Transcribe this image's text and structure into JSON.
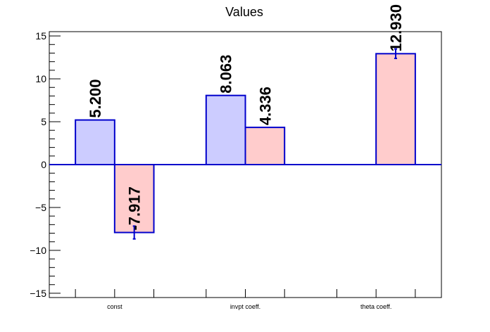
{
  "chart_data": {
    "type": "bar",
    "title": "Values",
    "xlabel": "",
    "ylabel": "",
    "ylim": [
      -15.5,
      15.5
    ],
    "yticks": [
      -15,
      -10,
      -5,
      0,
      5,
      10,
      15
    ],
    "ytick_labels": [
      "−15",
      "−10",
      "−5",
      "0",
      "5",
      "10",
      "15"
    ],
    "categories": [
      "const",
      "invpt coeff.",
      "theta coeff."
    ],
    "grid": false,
    "legend": "none",
    "bars": [
      {
        "category": "const",
        "slot": 0,
        "value": 5.2,
        "label": "5.200",
        "error": 0.0,
        "color": "#ccccff"
      },
      {
        "category": "const",
        "slot": 1,
        "value": -7.917,
        "label": "-7.917",
        "error": 0.75,
        "color": "#ffcccc"
      },
      {
        "category": "invpt coeff.",
        "slot": 0,
        "value": 8.063,
        "label": "8.063",
        "error": 0.0,
        "color": "#ccccff"
      },
      {
        "category": "invpt coeff.",
        "slot": 1,
        "value": 4.336,
        "label": "4.336",
        "error": 0.0,
        "color": "#ffcccc"
      },
      {
        "category": "theta coeff.",
        "slot": 1,
        "value": 12.93,
        "label": "12.930",
        "error": 0.55,
        "color": "#ffcccc"
      }
    ],
    "colors": {
      "outline": "#0000cc",
      "axis": "#000000"
    }
  }
}
